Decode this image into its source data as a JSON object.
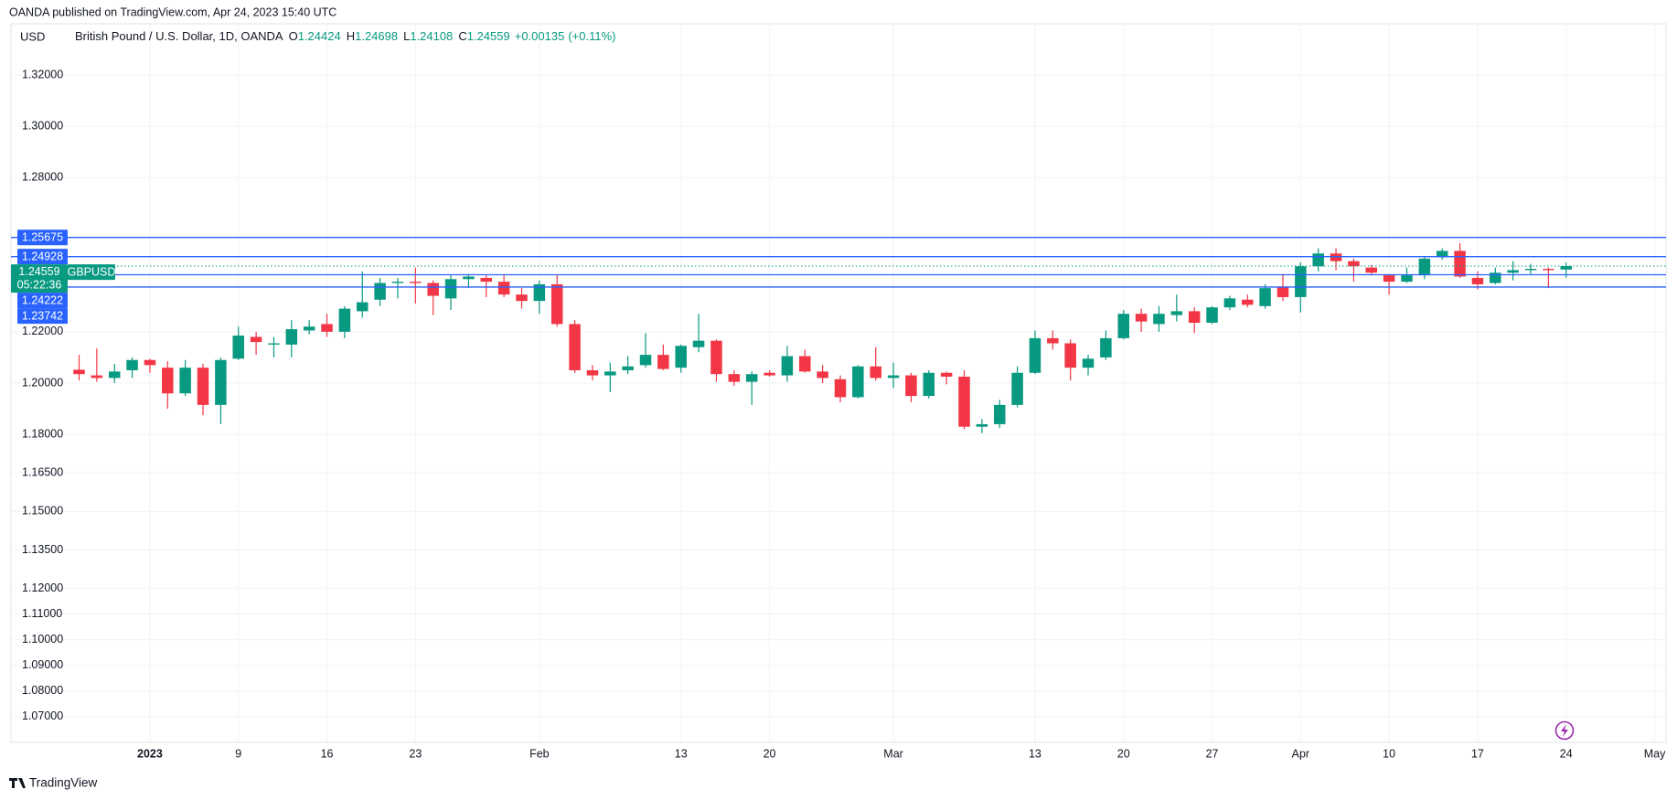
{
  "header": {
    "publisher": "OANDA published on TradingView.com, Apr 24, 2023 15:40 UTC",
    "currency": "USD",
    "instrument": "British Pound / U.S. Dollar, 1D, OANDA",
    "ohlc": [
      {
        "label": "O",
        "value": 1.24424
      },
      {
        "label": "H",
        "value": 1.24698
      },
      {
        "label": "L",
        "value": 1.24108
      },
      {
        "label": "C",
        "value": 1.24559
      }
    ],
    "change": "+0.00135",
    "change_pct": "(+0.11%)"
  },
  "chart_data": {
    "type": "candlestick",
    "categories": [
      null,
      null,
      null,
      null,
      "2023",
      null,
      null,
      null,
      null,
      "9",
      null,
      null,
      null,
      null,
      "16",
      null,
      null,
      null,
      null,
      "23",
      null,
      null,
      null,
      null,
      null,
      null,
      "Feb",
      null,
      null,
      null,
      null,
      null,
      null,
      null,
      "13",
      null,
      null,
      null,
      null,
      "20",
      null,
      null,
      null,
      null,
      null,
      null,
      "Mar",
      null,
      null,
      null,
      null,
      null,
      null,
      null,
      "13",
      null,
      null,
      null,
      null,
      "20",
      null,
      null,
      null,
      null,
      "27",
      null,
      null,
      null,
      null,
      "Apr",
      null,
      null,
      null,
      null,
      "10",
      null,
      null,
      null,
      null,
      "17",
      null,
      null,
      null,
      null,
      "24",
      null,
      null,
      null,
      null,
      "May"
    ],
    "open": [
      1.2052,
      1.203,
      1.202,
      1.205,
      1.209,
      1.206,
      1.196,
      1.206,
      1.1915,
      1.2095,
      1.218,
      1.215,
      1.215,
      1.2205,
      1.223,
      1.22,
      1.228,
      1.2325,
      1.239,
      1.2395,
      1.239,
      1.233,
      1.2405,
      1.241,
      1.2395,
      1.2345,
      1.232,
      1.2385,
      1.223,
      1.205,
      1.203,
      1.205,
      1.207,
      1.211,
      1.206,
      1.214,
      1.2165,
      1.2035,
      1.2005,
      1.204,
      1.203,
      1.2105,
      1.2045,
      1.2015,
      1.1945,
      1.2065,
      1.202,
      1.203,
      1.195,
      1.204,
      1.2025,
      1.183,
      1.184,
      1.1915,
      1.204,
      1.2175,
      1.2155,
      1.206,
      1.21,
      1.2175,
      1.227,
      1.223,
      1.2265,
      1.228,
      1.2235,
      1.2295,
      1.2325,
      1.23,
      1.2375,
      1.2335,
      1.2455,
      1.2505,
      1.2475,
      1.245,
      1.242,
      1.2395,
      1.242,
      1.249,
      1.2515,
      1.241,
      1.239,
      1.243,
      1.244,
      1.2445,
      1.24424,
      null,
      null,
      null,
      null,
      null
    ],
    "high": [
      1.211,
      1.2135,
      1.2075,
      1.21,
      1.2095,
      1.2085,
      1.209,
      1.2075,
      1.21,
      1.222,
      1.22,
      1.218,
      1.2245,
      1.2245,
      1.227,
      1.23,
      1.2435,
      1.241,
      1.241,
      1.245,
      1.24,
      1.242,
      1.2425,
      1.242,
      1.242,
      1.237,
      1.24,
      1.242,
      1.2245,
      1.207,
      1.208,
      1.2105,
      1.2195,
      1.215,
      1.215,
      1.227,
      1.217,
      1.205,
      1.2045,
      1.205,
      1.2145,
      1.213,
      1.207,
      1.203,
      1.207,
      1.214,
      1.208,
      1.204,
      1.205,
      1.2045,
      1.205,
      1.186,
      1.1935,
      1.2065,
      1.2205,
      1.2205,
      1.217,
      1.211,
      1.2205,
      1.2285,
      1.229,
      1.23,
      1.2345,
      1.2295,
      1.23,
      1.234,
      1.2345,
      1.2385,
      1.2425,
      1.247,
      1.2525,
      1.2525,
      1.2485,
      1.246,
      1.2425,
      1.245,
      1.2495,
      1.2525,
      1.2545,
      1.2435,
      1.245,
      1.2475,
      1.2465,
      1.245,
      1.24698,
      null,
      null,
      null,
      null,
      null
    ],
    "low": [
      1.201,
      1.2005,
      1.2,
      1.202,
      1.204,
      1.19,
      1.195,
      1.1875,
      1.184,
      1.209,
      1.211,
      1.21,
      1.21,
      1.219,
      1.218,
      1.2175,
      1.2255,
      1.23,
      1.233,
      1.231,
      1.2265,
      1.2285,
      1.237,
      1.2335,
      1.2335,
      1.229,
      1.227,
      1.222,
      1.204,
      1.201,
      1.1965,
      1.2035,
      1.206,
      1.205,
      1.204,
      1.212,
      1.2005,
      1.199,
      1.1915,
      1.2025,
      1.2005,
      1.204,
      1.2,
      1.1925,
      1.194,
      1.201,
      1.198,
      1.1925,
      1.194,
      1.1995,
      1.182,
      1.1805,
      1.1825,
      1.1905,
      1.2035,
      1.213,
      1.201,
      1.203,
      1.209,
      1.217,
      1.22,
      1.22,
      1.224,
      1.2195,
      1.223,
      1.2285,
      1.2295,
      1.229,
      1.232,
      1.2275,
      1.2435,
      1.244,
      1.2395,
      1.242,
      1.2345,
      1.239,
      1.2405,
      1.248,
      1.241,
      1.2365,
      1.2385,
      1.24,
      1.2425,
      1.237,
      1.24108,
      null,
      null,
      null,
      null,
      null
    ],
    "close": [
      1.2035,
      1.202,
      1.2045,
      1.209,
      1.207,
      1.196,
      1.206,
      1.1915,
      1.209,
      1.2185,
      1.216,
      1.2155,
      1.221,
      1.222,
      1.22,
      1.229,
      1.2315,
      1.239,
      1.2395,
      1.239,
      1.234,
      1.2405,
      1.2415,
      1.2395,
      1.2345,
      1.232,
      1.2385,
      1.223,
      1.205,
      1.203,
      1.2045,
      1.2065,
      1.211,
      1.2055,
      1.2145,
      1.2165,
      1.2035,
      1.2005,
      1.2035,
      1.203,
      1.2105,
      1.2045,
      1.202,
      1.1945,
      1.2065,
      1.202,
      1.203,
      1.195,
      1.204,
      1.2025,
      1.183,
      1.184,
      1.1915,
      1.204,
      1.2175,
      1.2155,
      1.206,
      1.2095,
      1.2175,
      1.227,
      1.224,
      1.227,
      1.228,
      1.2235,
      1.2295,
      1.233,
      1.2305,
      1.237,
      1.2335,
      1.2455,
      1.2505,
      1.2475,
      1.2455,
      1.243,
      1.2395,
      1.242,
      1.2485,
      1.2515,
      1.2415,
      1.2385,
      1.243,
      1.244,
      1.2445,
      1.244,
      1.24559,
      null,
      null,
      null,
      null,
      null
    ],
    "up_color": "#089981",
    "down_color": "#f23645",
    "ylim": [
      1.06,
      1.34
    ],
    "yticks": [
      {
        "value": 1.32,
        "label": "1.32000"
      },
      {
        "value": 1.3,
        "label": "1.30000"
      },
      {
        "value": 1.28,
        "label": "1.28000"
      },
      {
        "value": 1.22,
        "label": "1.22000"
      },
      {
        "value": 1.2,
        "label": "1.20000"
      },
      {
        "value": 1.18,
        "label": "1.18000"
      },
      {
        "value": 1.165,
        "label": "1.16500"
      },
      {
        "value": 1.15,
        "label": "1.15000"
      },
      {
        "value": 1.135,
        "label": "1.13500"
      },
      {
        "value": 1.12,
        "label": "1.12000"
      },
      {
        "value": 1.11,
        "label": "1.11000"
      },
      {
        "value": 1.1,
        "label": "1.10000"
      },
      {
        "value": 1.09,
        "label": "1.09000"
      },
      {
        "value": 1.08,
        "label": "1.08000"
      },
      {
        "value": 1.07,
        "label": "1.07000"
      }
    ],
    "grid": true,
    "levels": {
      "color": "#2962ff",
      "values": [
        1.25675,
        1.24928,
        1.24222,
        1.23742
      ]
    },
    "last_price": {
      "symbol": "GBPUSD",
      "value": 1.24559,
      "countdown": "05:22:36"
    }
  },
  "footer": {
    "brand": "TradingView"
  }
}
